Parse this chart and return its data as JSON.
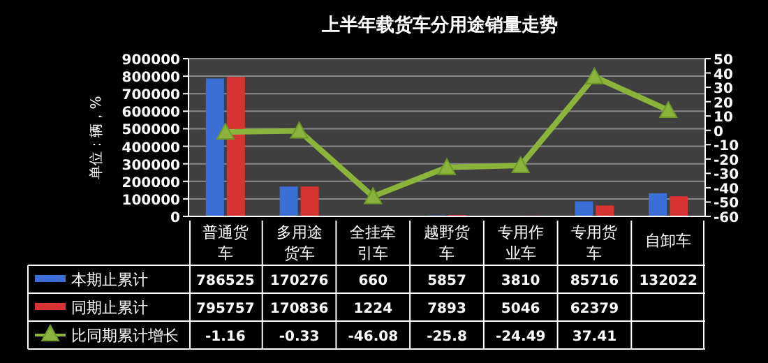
{
  "chart_data": {
    "type": "bar",
    "title": "上半年载货车分用途销量走势",
    "ylabel": "单位：辆，%",
    "categories": [
      "普通货车",
      "多用途货车",
      "全挂牵引车",
      "越野货车",
      "专用作业车",
      "专用货车",
      "自卸车"
    ],
    "series": [
      {
        "name": "本期止累计",
        "color": "#3b6fd6",
        "values": [
          786525,
          170276,
          660,
          5857,
          3810,
          85716,
          132022
        ],
        "value_labels": [
          "786525",
          "170276",
          "660",
          "5857",
          "3810",
          "85716",
          "132022"
        ]
      },
      {
        "name": "同期止累计",
        "color": "#d63333",
        "values": [
          795757,
          170836,
          1224,
          7893,
          5046,
          62379,
          115000
        ],
        "value_labels": [
          "795757",
          "170836",
          "1224",
          "7893",
          "5046",
          "62379",
          null
        ]
      },
      {
        "name": "比同期累计增长",
        "type": "line",
        "axis": "y2",
        "color": "#8cb43c",
        "marker": "triangle",
        "values": [
          -1.16,
          -0.33,
          -46.08,
          -25.8,
          -24.49,
          37.41,
          14
        ],
        "value_labels": [
          "-1.16",
          "-0.33",
          "-46.08",
          "-25.8",
          "-24.49",
          "37.41",
          null
        ]
      }
    ],
    "ylim": [
      0,
      900000
    ],
    "yticks": [
      0,
      100000,
      200000,
      300000,
      400000,
      500000,
      600000,
      700000,
      800000,
      900000
    ],
    "y2lim": [
      -60,
      50
    ],
    "y2ticks": [
      -60,
      -50,
      -40,
      -30,
      -20,
      -10,
      0,
      10,
      20,
      30,
      40,
      50
    ],
    "grid": "y",
    "legend": "bottom"
  }
}
